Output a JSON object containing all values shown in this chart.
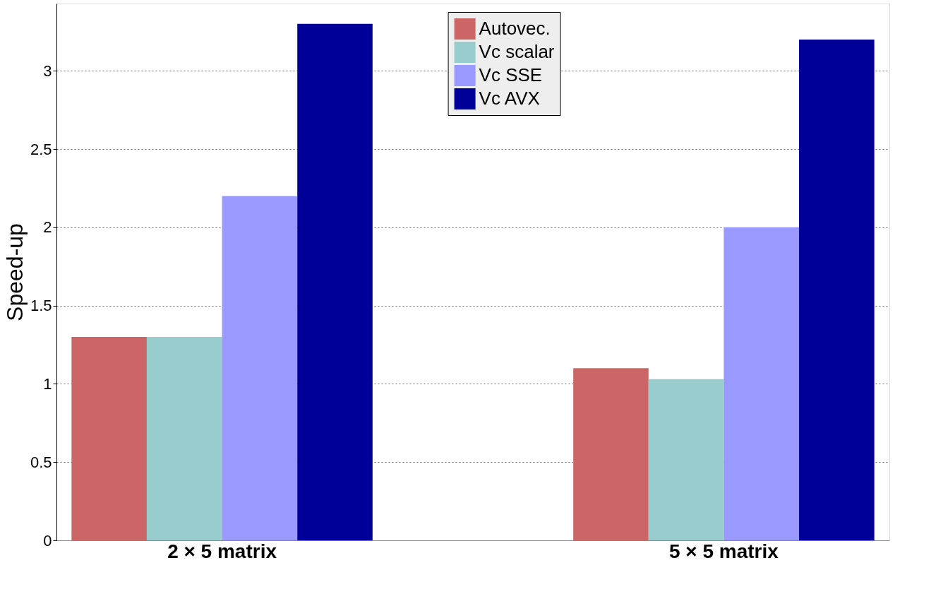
{
  "chart_data": {
    "type": "bar",
    "categories": [
      "2 × 5 matrix",
      "5 × 5 matrix"
    ],
    "series": [
      {
        "name": "Autovec.",
        "color": "#cc6666",
        "values": [
          1.3,
          1.1
        ]
      },
      {
        "name": "Vc scalar",
        "color": "#99cccc",
        "values": [
          1.3,
          1.03
        ]
      },
      {
        "name": "Vc SSE",
        "color": "#9999ff",
        "values": [
          2.2,
          2.0
        ]
      },
      {
        "name": "Vc AVX",
        "color": "#000099",
        "values": [
          3.3,
          3.2
        ]
      }
    ],
    "ylabel": "Speed-up",
    "ylim": [
      0,
      3.43
    ],
    "yticks": [
      0,
      0.5,
      1,
      1.5,
      2,
      2.5,
      3
    ],
    "grid": "y",
    "legend": "top right"
  }
}
